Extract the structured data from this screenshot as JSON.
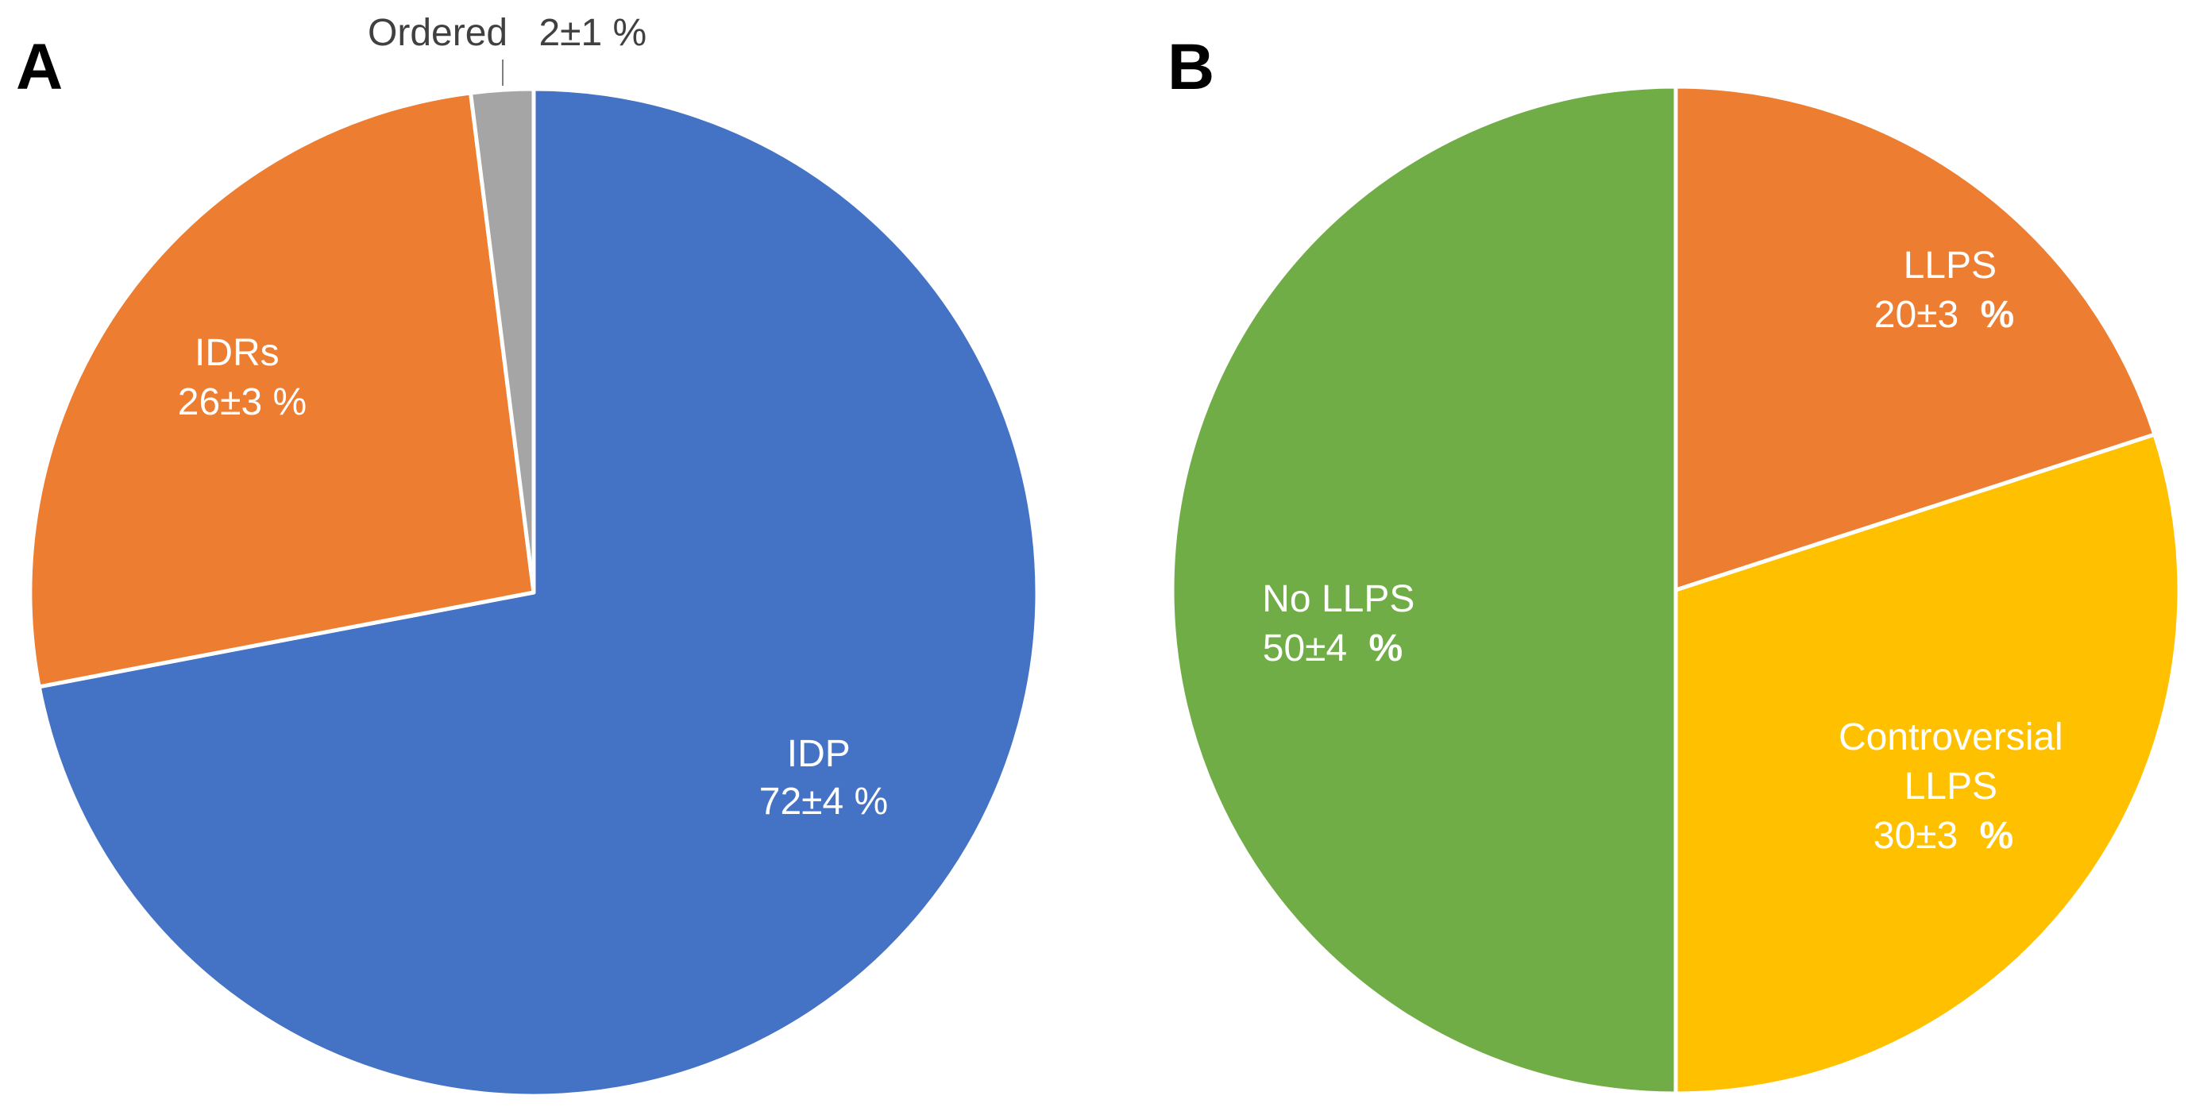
{
  "chart_data": [
    {
      "type": "pie",
      "panel": "A",
      "slices": [
        {
          "label": "IDP",
          "value_text": "72±4 %",
          "value": 72,
          "error": 4,
          "color": "#4472C4",
          "label_color": "#FFFFFF"
        },
        {
          "label": "IDRs",
          "value_text": "26±3 %",
          "value": 26,
          "error": 3,
          "color": "#ED7D31",
          "label_color": "#FFFFFF"
        },
        {
          "label": "Ordered",
          "value_text": "2±1 %",
          "value": 2,
          "error": 1,
          "color": "#A5A5A5",
          "label_color": "#404040"
        }
      ]
    },
    {
      "type": "pie",
      "panel": "B",
      "slices": [
        {
          "label": "LLPS",
          "value_text": "20±3",
          "pct_sign": "%",
          "value": 20,
          "error": 3,
          "color": "#ED7D31",
          "label_color": "#FFFFFF"
        },
        {
          "label": "Controversial LLPS",
          "label_lines": [
            "Controversial",
            "LLPS"
          ],
          "value_text": "30±3",
          "pct_sign": "%",
          "value": 30,
          "error": 3,
          "color": "#FFC000",
          "label_color": "#FFFFFF"
        },
        {
          "label": "No LLPS",
          "value_text": "50±4",
          "pct_sign": "%",
          "value": 50,
          "error": 4,
          "color": "#70AD47",
          "label_color": "#FFFFFF"
        }
      ]
    }
  ]
}
